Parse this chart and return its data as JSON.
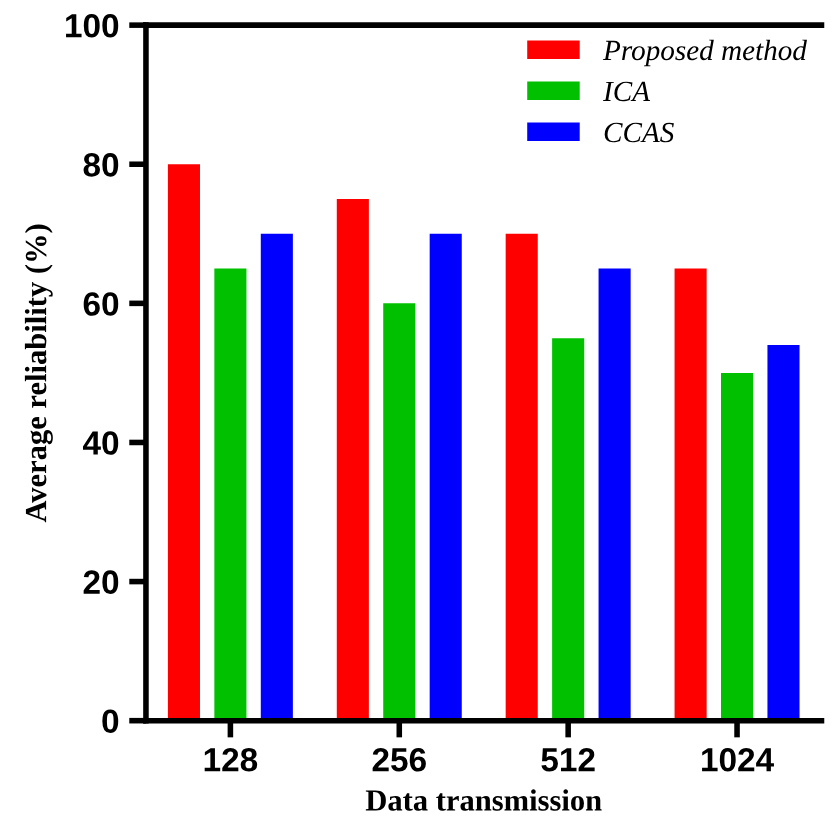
{
  "chart_data": {
    "type": "bar",
    "xlabel": "Data transmission",
    "ylabel": "Average reliability (%)",
    "categories": [
      "128",
      "256",
      "512",
      "1024"
    ],
    "series": [
      {
        "name": "Proposed method",
        "color": "#ff0000",
        "values": [
          80,
          75,
          70,
          65
        ]
      },
      {
        "name": "ICA",
        "color": "#00c000",
        "values": [
          65,
          60,
          55,
          50
        ]
      },
      {
        "name": "CCAS",
        "color": "#0000ff",
        "values": [
          70,
          70,
          65,
          54
        ]
      }
    ],
    "ylim": [
      0,
      100
    ],
    "yticks": [
      0,
      20,
      40,
      60,
      80,
      100
    ],
    "grid": false,
    "legend": "top right"
  }
}
